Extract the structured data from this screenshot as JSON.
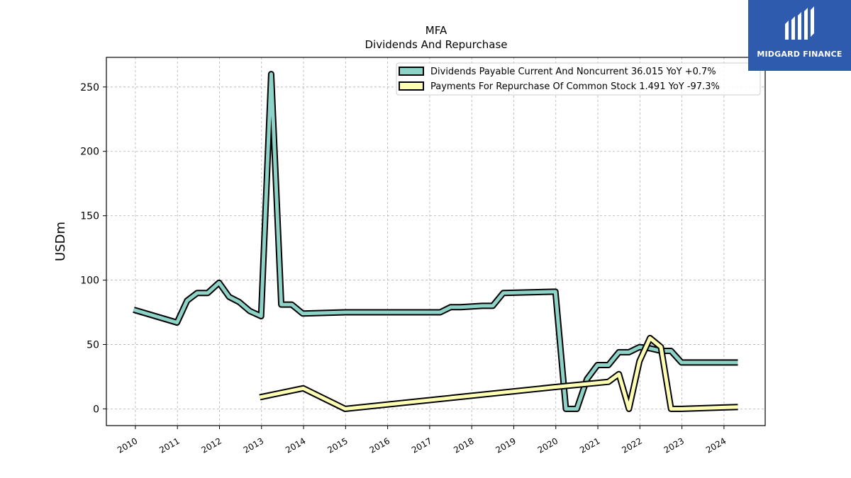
{
  "brand": {
    "name": "MIDGARD FINANCE",
    "color": "#2f5baf"
  },
  "chart_data": {
    "type": "line",
    "title": "MFA",
    "subtitle": "Dividends And Repurchase",
    "ylabel": "USDm",
    "xlabel": "",
    "ylim": [
      -13,
      273
    ],
    "xlim": [
      2009.31,
      2024.98
    ],
    "yticks": [
      0,
      50,
      100,
      150,
      200,
      250
    ],
    "xticks": [
      "2010",
      "2011",
      "2012",
      "2013",
      "2014",
      "2015",
      "2016",
      "2017",
      "2018",
      "2019",
      "2020",
      "2021",
      "2022",
      "2023",
      "2024"
    ],
    "grid": true,
    "legend_position": "top-right",
    "series": [
      {
        "name": "Dividends Payable Current And Noncurrent  36.015 YoY +0.7%",
        "color": "#8dd3c7",
        "x": [
          2009.96,
          2010.99,
          2011.23,
          2011.47,
          2011.72,
          2011.99,
          2012.23,
          2012.47,
          2012.72,
          2012.99,
          2013.23,
          2013.47,
          2013.72,
          2013.98,
          2014.99,
          2015.99,
          2016.99,
          2017.25,
          2017.5,
          2017.74,
          2018.25,
          2018.5,
          2018.75,
          2019.99,
          2020.24,
          2020.5,
          2020.74,
          2020.99,
          2021.25,
          2021.5,
          2021.74,
          2021.99,
          2022.24,
          2022.5,
          2022.74,
          2022.99,
          2023.5,
          2024.33
        ],
        "values": [
          77,
          67,
          84,
          90,
          90,
          98,
          87,
          83,
          76,
          72,
          260,
          81,
          81,
          74,
          75,
          75,
          75,
          75,
          79,
          79,
          80,
          80,
          90,
          91,
          0,
          0,
          23,
          34,
          34,
          44,
          44,
          48,
          47,
          45,
          45,
          36,
          36,
          36.015
        ]
      },
      {
        "name": "Payments For Repurchase Of Common Stock  1.491 YoY -97.3%",
        "color": "#ffffb3",
        "x": [
          2012.96,
          2013.99,
          2014.99,
          2019.99,
          2021.25,
          2021.5,
          2021.74,
          2021.99,
          2022.24,
          2022.5,
          2022.74,
          2022.99,
          2024.33
        ],
        "values": [
          9,
          16,
          0,
          17,
          21,
          27,
          0,
          37,
          55,
          48,
          0,
          0,
          1.491
        ]
      }
    ]
  }
}
